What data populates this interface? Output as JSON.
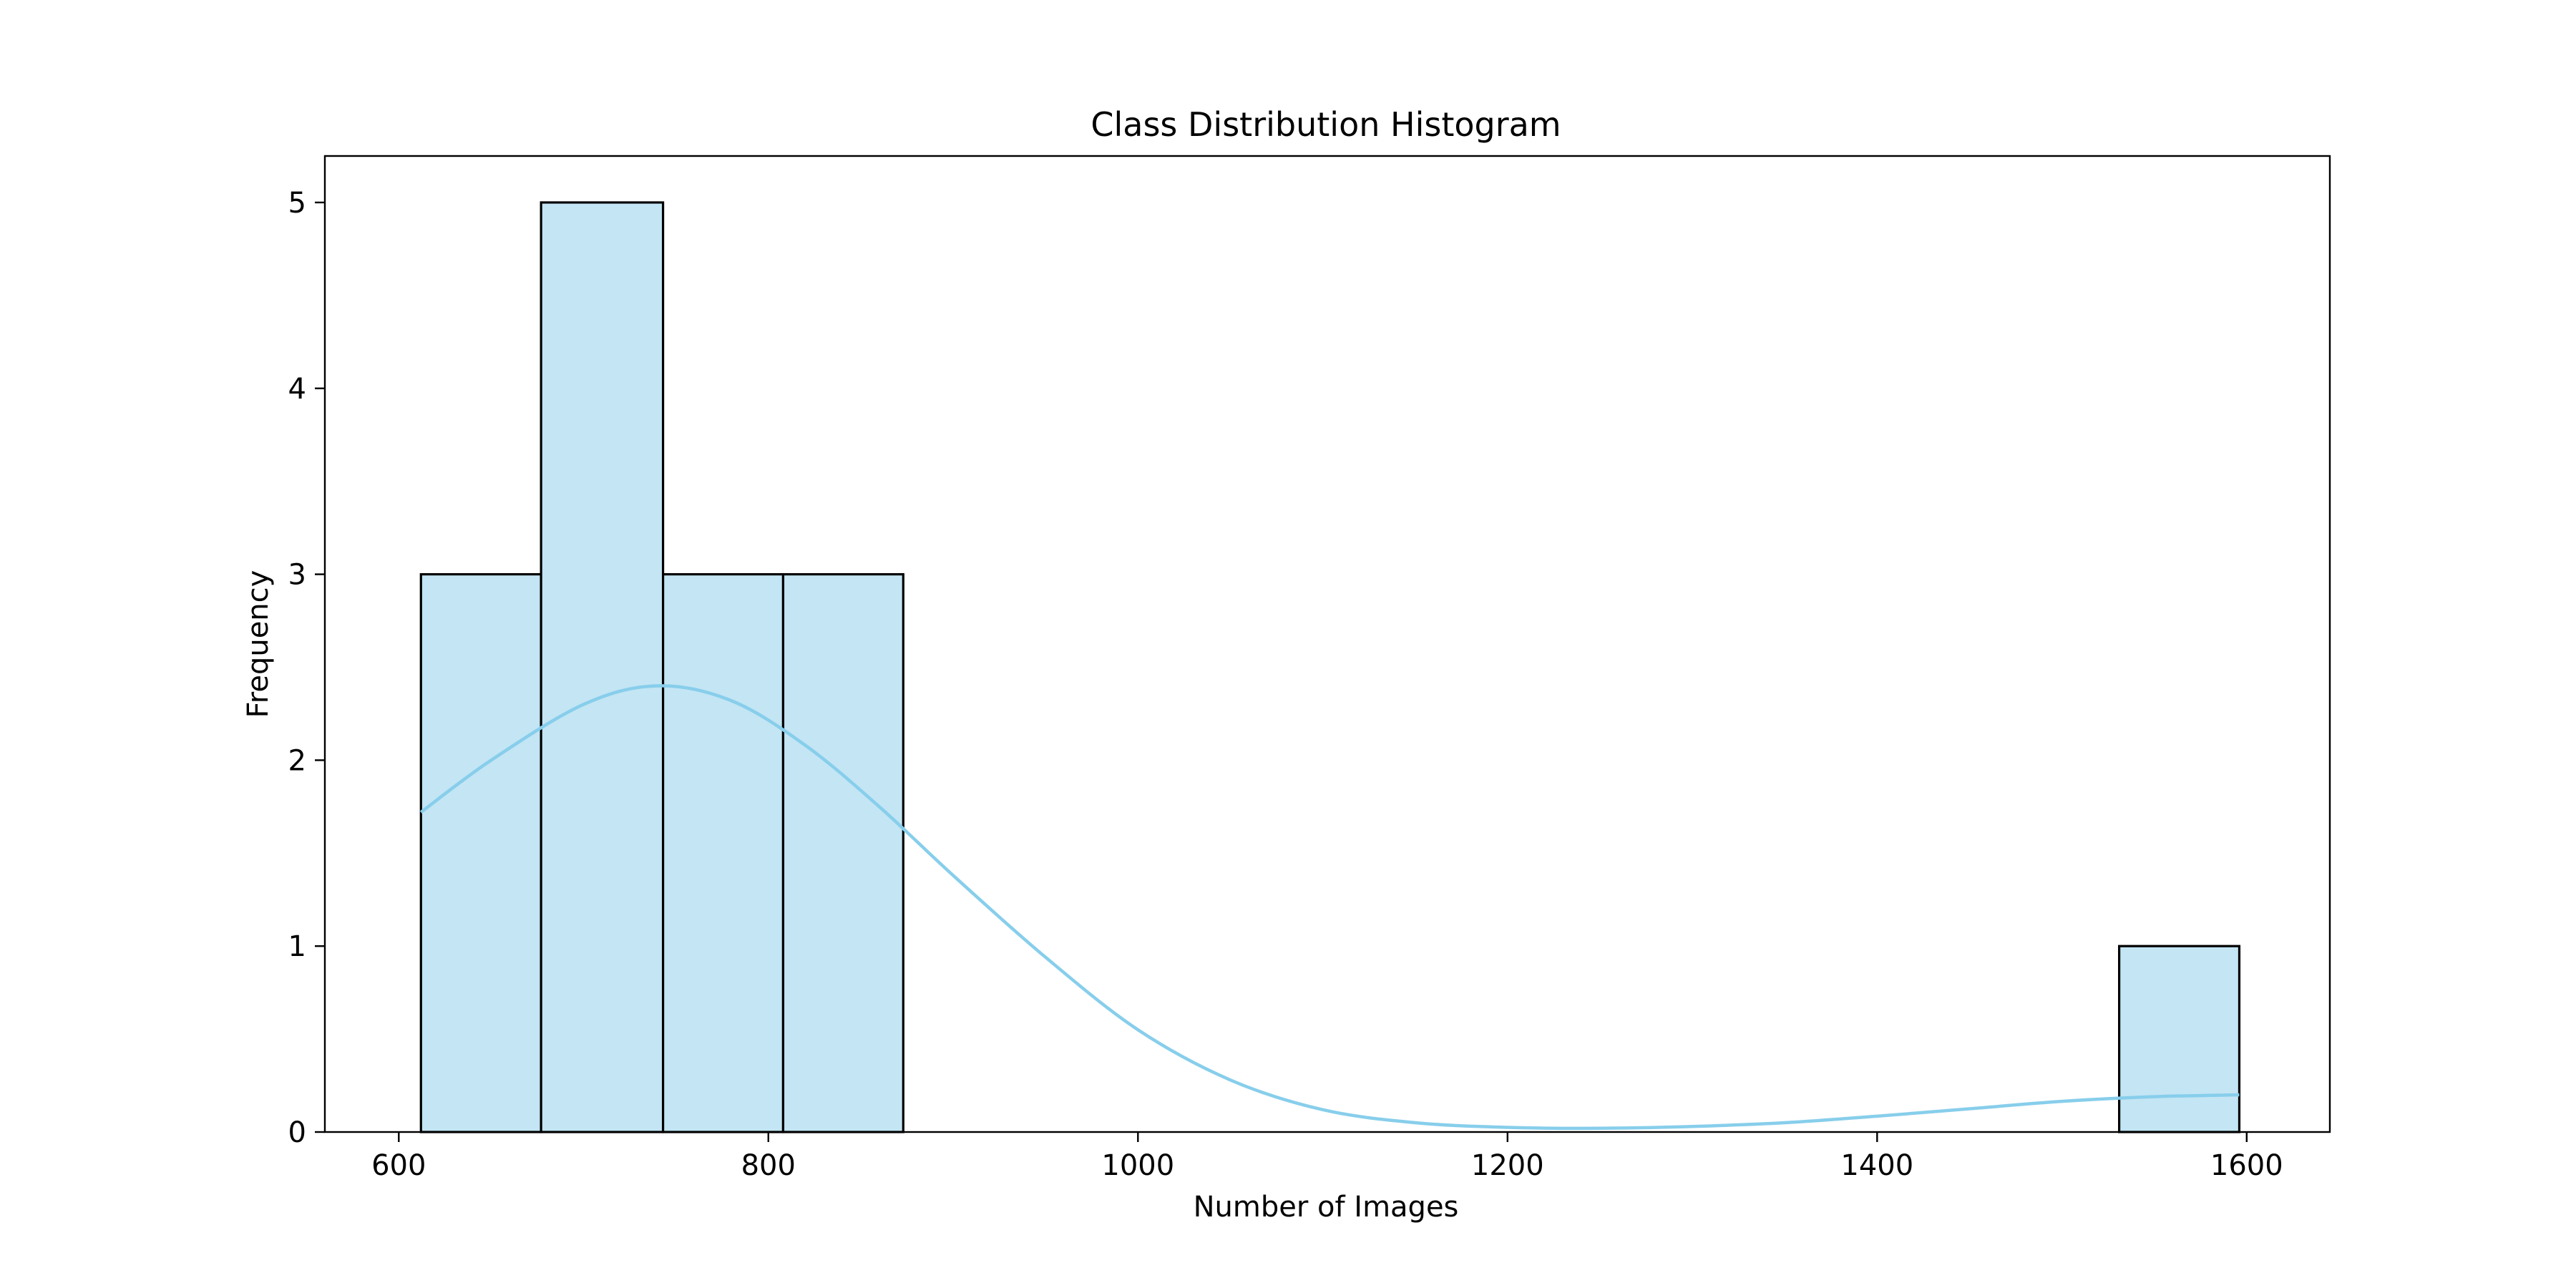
{
  "chart_data": {
    "type": "bar",
    "title": "Class Distribution Histogram",
    "xlabel": "Number of Images",
    "ylabel": "Frequency",
    "xlim": [
      560,
      1645
    ],
    "ylim": [
      0,
      5.25
    ],
    "xticks": [
      600,
      800,
      1000,
      1200,
      1400,
      1600
    ],
    "yticks": [
      0,
      1,
      2,
      3,
      4,
      5
    ],
    "bins": [
      {
        "start": 612,
        "end": 677,
        "count": 3
      },
      {
        "start": 677,
        "end": 743,
        "count": 5
      },
      {
        "start": 743,
        "end": 808,
        "count": 3
      },
      {
        "start": 808,
        "end": 873,
        "count": 3
      },
      {
        "start": 1531,
        "end": 1596,
        "count": 1
      }
    ],
    "kde_curve": {
      "x": [
        612,
        650,
        700,
        740,
        780,
        820,
        860,
        900,
        950,
        1000,
        1050,
        1100,
        1150,
        1200,
        1250,
        1300,
        1350,
        1400,
        1450,
        1500,
        1550,
        1596
      ],
      "y": [
        1.72,
        2.0,
        2.3,
        2.4,
        2.32,
        2.08,
        1.75,
        1.38,
        0.94,
        0.55,
        0.28,
        0.12,
        0.05,
        0.025,
        0.02,
        0.03,
        0.05,
        0.085,
        0.125,
        0.165,
        0.19,
        0.2
      ]
    },
    "colors": {
      "bar_fill": "#c3e5f4",
      "bar_edge": "#000000",
      "kde_line": "#87ceeb"
    },
    "grid": false,
    "legend": "none"
  }
}
